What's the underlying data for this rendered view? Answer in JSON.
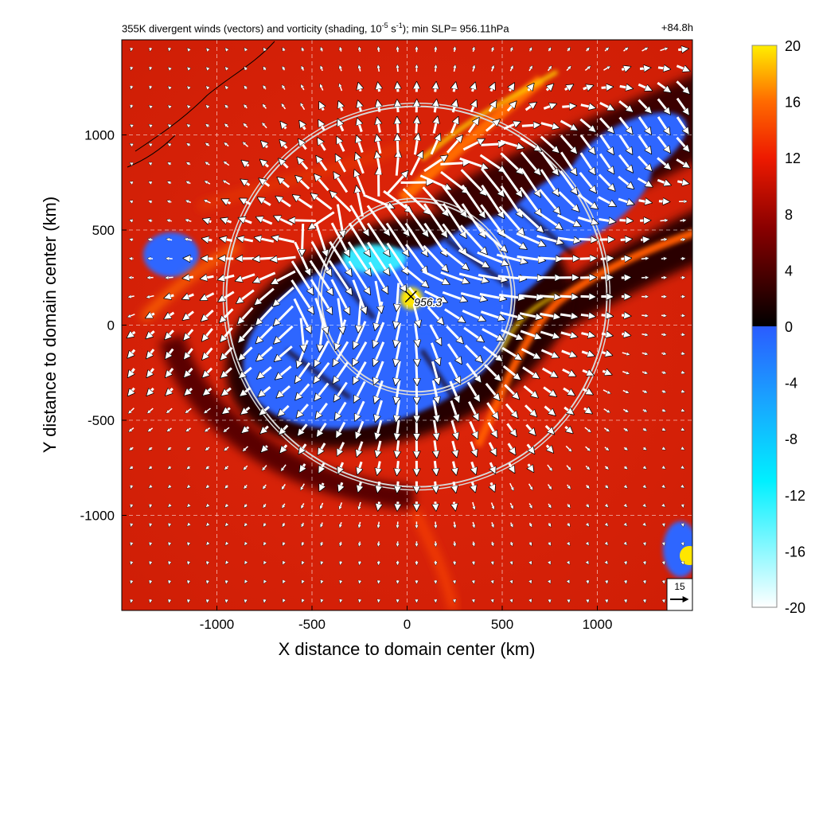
{
  "chart_data": {
    "type": "heatmap",
    "title_left_parts": {
      "prefix": "355K divergent winds (vectors) and vorticity (shading, 10",
      "exp1": "-5",
      "mid": " s",
      "exp2": "-1",
      "suffix": "); min SLP= 956.11hPa"
    },
    "title_right": "+84.8h",
    "xlabel": "X distance to domain center (km)",
    "ylabel": "Y distance to domain center (km)",
    "xlim": [
      -1500,
      1500
    ],
    "ylim": [
      -1500,
      1500
    ],
    "xticks": [
      -1000,
      -500,
      0,
      500,
      1000
    ],
    "yticks": [
      -1000,
      -500,
      0,
      500,
      1000
    ],
    "grid": "dashed",
    "colorbar": {
      "range": [
        -20,
        20
      ],
      "ticks": [
        20,
        16,
        12,
        8,
        4,
        0,
        -4,
        -8,
        -12,
        -16,
        -20
      ],
      "placement": "right"
    },
    "center_marker": {
      "x": 20,
      "y": 150,
      "label": "956.3"
    },
    "range_rings": [
      {
        "x": 50,
        "y": 150,
        "radius": 500
      },
      {
        "x": 50,
        "y": 150,
        "radius": 1000
      }
    ],
    "reference_vector": {
      "label": "15"
    },
    "colors": {
      "positive_low": "#1a0000",
      "positive_mid": "#cc1100",
      "positive_high": "#ffee00",
      "negative_low": "#3366ff",
      "negative_high": "#ffffff"
    }
  }
}
